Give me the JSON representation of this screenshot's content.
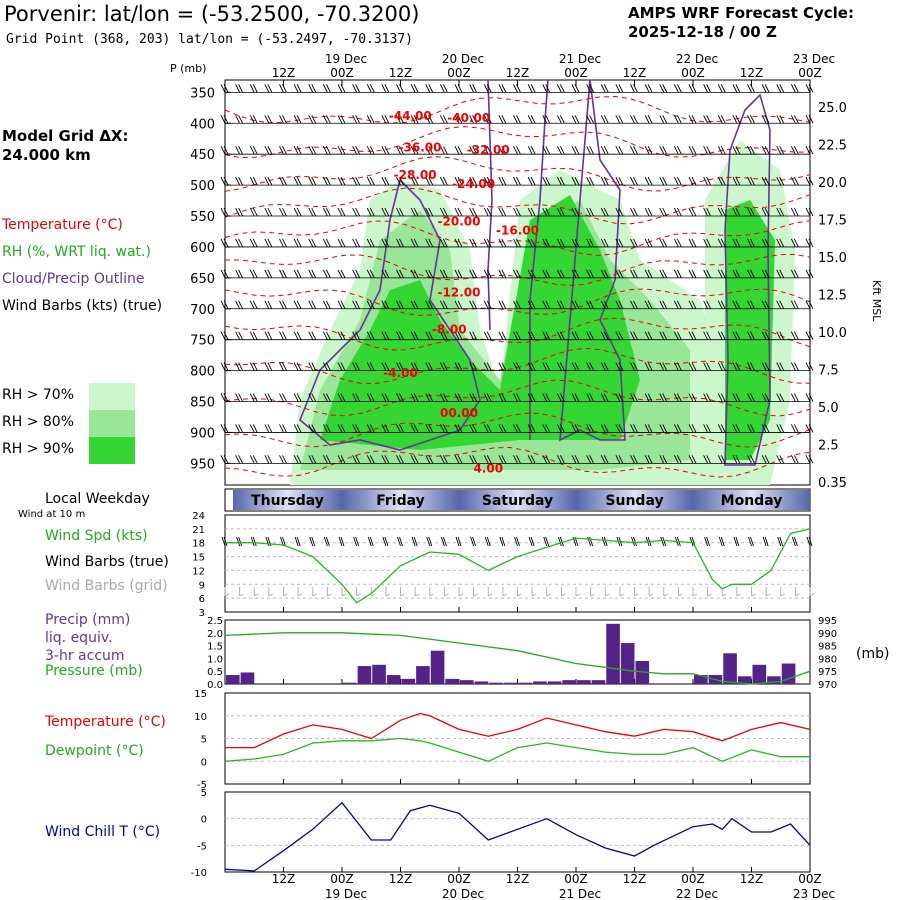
{
  "header": {
    "title": "Porvenir:  lat/lon = (-53.2500, -70.3200)",
    "grid_point": "Grid Point (368, 203) lat/lon = (-53.2497, -70.3137)",
    "cycle_line1": "AMPS WRF Forecast Cycle:",
    "cycle_line2": "2025-12-18 / 00  Z"
  },
  "left_labels": {
    "model_grid_line1": "Model Grid ΔX:",
    "model_grid_line2": " 24.000 km",
    "temperature": "Temperature (°C)",
    "rh": "RH (%, WRT liq. wat.)",
    "cloud": "Cloud/Precip Outline",
    "wind": "Wind Barbs (kts) (true)",
    "rh70": "RH > 70%",
    "rh80": "RH > 80%",
    "rh90": "RH > 90%",
    "local_weekday": "Local Weekday",
    "wind_at": "Wind at 10 m",
    "wind_spd": "Wind Spd (kts)",
    "wind_barbs_true": "Wind Barbs (true)",
    "wind_barbs_grid": "Wind Barbs (grid)",
    "precip": "Precip (mm)",
    "liq": "liq. equiv.",
    "accum": "3-hr accum",
    "pressure": "Pressure (mb)",
    "temp2": "Temperature (°C)",
    "dewpoint": "Dewpoint (°C)",
    "windchill": "Wind Chill T (°C)",
    "mb_unit": "(mb)",
    "p_axis_label": "P (mb)",
    "kft_label": "Kft MSL"
  },
  "colors": {
    "rh70": "#ccf7cc",
    "rh80": "#99e699",
    "rh90": "#33d633",
    "temperature": "#ee0000",
    "dewpoint": "#22bb22",
    "cloud": "#663399",
    "precip": "#552288",
    "windchill": "#0000aa",
    "pressure": "#22aa22",
    "weekday_band": "#5566aa"
  },
  "time_axis": {
    "hours": [
      0,
      24,
      48,
      72,
      96,
      120
    ],
    "top_labels": [
      "12Z",
      "00Z",
      "12Z",
      "00Z",
      "12Z",
      "00Z",
      "12Z",
      "00Z",
      "12Z",
      "00Z"
    ],
    "tick_hours": [
      12,
      24,
      36,
      48,
      60,
      72,
      84,
      96,
      108,
      120
    ],
    "date_labels": [
      "19 Dec",
      "20 Dec",
      "21 Dec",
      "22 Dec",
      "23 Dec"
    ],
    "date_hours": [
      24,
      48,
      72,
      96,
      120
    ],
    "weekdays": [
      "Thursday",
      "Friday",
      "Saturday",
      "Sunday",
      "Monday"
    ]
  },
  "chart_data": [
    {
      "type": "heatmap",
      "title": "Time-height cross section",
      "ylabel": "P (mb)",
      "y2label": "Kft MSL",
      "p_ticks": [
        350,
        400,
        450,
        500,
        550,
        600,
        650,
        700,
        750,
        800,
        850,
        900,
        950
      ],
      "kft_ticks": [
        "25.0",
        "22.5",
        "20.0",
        "17.5",
        "15.0",
        "12.5",
        "10.0",
        "7.5",
        "5.0",
        "2.5",
        "0.35"
      ],
      "temperature_labels": [
        {
          "text": "-44.00",
          "t": 38,
          "p": 395
        },
        {
          "text": "-40.00",
          "t": 50,
          "p": 398
        },
        {
          "text": "-36.00",
          "t": 40,
          "p": 446
        },
        {
          "text": "-32.00",
          "t": 54,
          "p": 450
        },
        {
          "text": "-28.00",
          "t": 39,
          "p": 490
        },
        {
          "text": "-24.00",
          "t": 51,
          "p": 505
        },
        {
          "text": "-20.00",
          "t": 48,
          "p": 565
        },
        {
          "text": "-16.00",
          "t": 60,
          "p": 580
        },
        {
          "text": "-12.00",
          "t": 48,
          "p": 680
        },
        {
          "text": "-8.00",
          "t": 46,
          "p": 740
        },
        {
          "text": "-4.00",
          "t": 36,
          "p": 810
        },
        {
          "text": "00.00",
          "t": 48,
          "p": 875
        },
        {
          "text": "4.00",
          "t": 54,
          "p": 965
        }
      ],
      "rh_regions_hours": [
        [
          14,
          48
        ],
        [
          30,
          66
        ],
        [
          60,
          84
        ],
        [
          96,
          118
        ]
      ]
    },
    {
      "type": "line",
      "title": "Wind Spd (kts)",
      "ylim": [
        3,
        24
      ],
      "yticks": [
        3,
        6,
        9,
        12,
        15,
        18,
        21,
        24
      ],
      "x": [
        0,
        6,
        12,
        18,
        24,
        27,
        30,
        36,
        42,
        48,
        54,
        60,
        66,
        72,
        78,
        84,
        90,
        96,
        100,
        102,
        104,
        108,
        112,
        116,
        120
      ],
      "series": [
        {
          "name": "Wind Spd (kts)",
          "values": [
            18,
            18,
            17.5,
            15,
            9,
            5,
            7,
            13,
            16,
            15.5,
            12,
            15,
            17,
            19,
            18.5,
            18,
            18.5,
            18,
            10,
            8,
            9,
            9,
            12,
            20,
            21
          ]
        }
      ]
    },
    {
      "type": "bar",
      "title": "Precip (mm) / Pressure (mb)",
      "ylim": [
        0,
        2.5
      ],
      "yticks": [
        "0.0",
        "0.5",
        "1.0",
        "1.5",
        "2.0",
        "2.5"
      ],
      "y2ticks": [
        "970",
        "975",
        "980",
        "985",
        "990",
        "995"
      ],
      "x": [
        3,
        6,
        27,
        30,
        33,
        36,
        39,
        42,
        45,
        48,
        51,
        54,
        57,
        60,
        63,
        66,
        69,
        72,
        75,
        78,
        81,
        84,
        87,
        90,
        93,
        99,
        102,
        105,
        108,
        111,
        114,
        117
      ],
      "values": [
        0.35,
        0.45,
        0.05,
        0.7,
        0.75,
        0.35,
        0.2,
        0.7,
        1.3,
        0.2,
        0.15,
        0.1,
        0.05,
        0.05,
        0.05,
        0.1,
        0.1,
        0.15,
        0.15,
        0.15,
        2.35,
        1.6,
        0.9,
        0.0,
        0.0,
        0.35,
        0.35,
        1.2,
        0.3,
        0.75,
        0.3,
        0.8
      ],
      "series": [
        {
          "name": "Pressure (mb)",
          "x": [
            0,
            12,
            24,
            36,
            48,
            60,
            72,
            84,
            90,
            96,
            102,
            108,
            114,
            120
          ],
          "values": [
            989,
            990,
            990,
            989,
            986,
            983,
            978,
            975,
            974,
            974,
            971,
            970,
            971,
            975
          ]
        }
      ]
    },
    {
      "type": "line",
      "title": "Temperature / Dewpoint (°C)",
      "ylim": [
        -5,
        15
      ],
      "yticks": [
        -5,
        0,
        5,
        10,
        15
      ],
      "x": [
        0,
        6,
        12,
        18,
        24,
        30,
        36,
        40,
        42,
        48,
        54,
        60,
        66,
        72,
        78,
        84,
        90,
        96,
        102,
        108,
        114,
        120
      ],
      "series": [
        {
          "name": "Temperature (°C)",
          "values": [
            3,
            3,
            6,
            8,
            7,
            5,
            9,
            10.5,
            10,
            7,
            5.5,
            7,
            9.5,
            8,
            6.5,
            5.5,
            7,
            6.5,
            4.5,
            7,
            8.5,
            7
          ]
        },
        {
          "name": "Dewpoint (°C)",
          "values": [
            0,
            0.5,
            1.5,
            4,
            4.5,
            4.5,
            5,
            4.5,
            4,
            2,
            0,
            3,
            4,
            3,
            2,
            1.5,
            1.5,
            3,
            0,
            2.5,
            1,
            1
          ]
        }
      ]
    },
    {
      "type": "line",
      "title": "Wind Chill T (°C)",
      "ylim": [
        -10,
        5
      ],
      "yticks": [
        -10,
        -5,
        0,
        5
      ],
      "x": [
        0,
        6,
        12,
        18,
        24,
        30,
        34,
        38,
        42,
        48,
        54,
        60,
        66,
        72,
        78,
        84,
        88,
        96,
        100,
        102,
        104,
        108,
        112,
        116,
        120
      ],
      "series": [
        {
          "name": "Wind Chill T (°C)",
          "values": [
            -9.5,
            -9.8,
            -6,
            -2,
            3,
            -4,
            -4,
            1.5,
            2.5,
            1,
            -4,
            -2,
            0,
            -3,
            -5.5,
            -7,
            -5,
            -1.5,
            -1,
            -2,
            0,
            -2.5,
            -2.5,
            -1,
            -5
          ]
        }
      ]
    }
  ]
}
